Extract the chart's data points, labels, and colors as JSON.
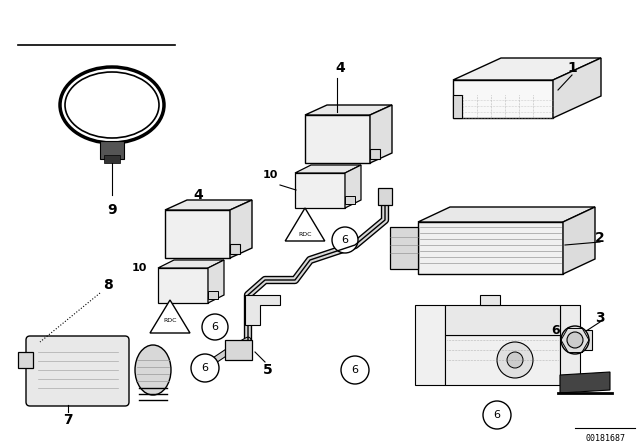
{
  "bg_color": "#ffffff",
  "line_color": "#000000",
  "fig_width": 6.4,
  "fig_height": 4.48,
  "dpi": 100,
  "watermark": "00181687"
}
